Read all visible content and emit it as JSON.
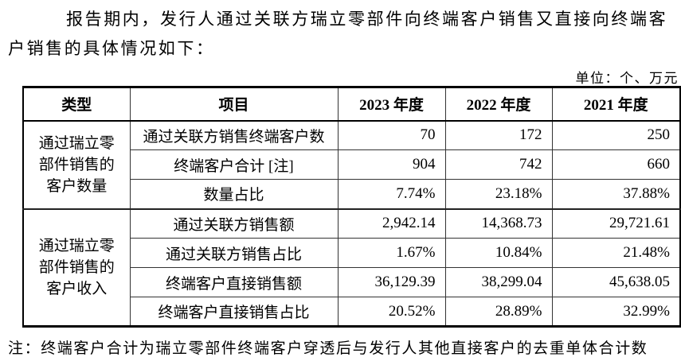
{
  "paragraph": {
    "line1": "报告期内，发行人通过关联方瑞立零部件向终端客户销售又直接向终端客",
    "line2": "户销售的具体情况如下："
  },
  "unit_label": "单位：个、万元",
  "table": {
    "headers": [
      "类型",
      "项目",
      "2023 年度",
      "2022 年度",
      "2021 年度"
    ],
    "groups": [
      {
        "type_label": "通过瑞立零部件销售的客户数量",
        "rows": [
          {
            "item": "通过关联方销售终端客户数",
            "values": [
              "70",
              "172",
              "250"
            ]
          },
          {
            "item": "终端客户合计 [注]",
            "values": [
              "904",
              "742",
              "660"
            ]
          },
          {
            "item": "数量占比",
            "values": [
              "7.74%",
              "23.18%",
              "37.88%"
            ]
          }
        ]
      },
      {
        "type_label": "通过瑞立零部件销售的客户收入",
        "rows": [
          {
            "item": "通过关联方销售额",
            "values": [
              "2,942.14",
              "14,368.73",
              "29,721.61"
            ]
          },
          {
            "item": "通过关联方销售占比",
            "values": [
              "1.67%",
              "10.84%",
              "21.48%"
            ]
          },
          {
            "item": "终端客户直接销售额",
            "values": [
              "36,129.39",
              "38,299.04",
              "45,638.05"
            ]
          },
          {
            "item": "终端客户直接销售占比",
            "values": [
              "20.52%",
              "28.89%",
              "32.99%"
            ]
          }
        ]
      }
    ]
  },
  "note": "注：终端客户合计为瑞立零部件终端客户穿透后与发行人其他直接客户的去重单体合计数"
}
